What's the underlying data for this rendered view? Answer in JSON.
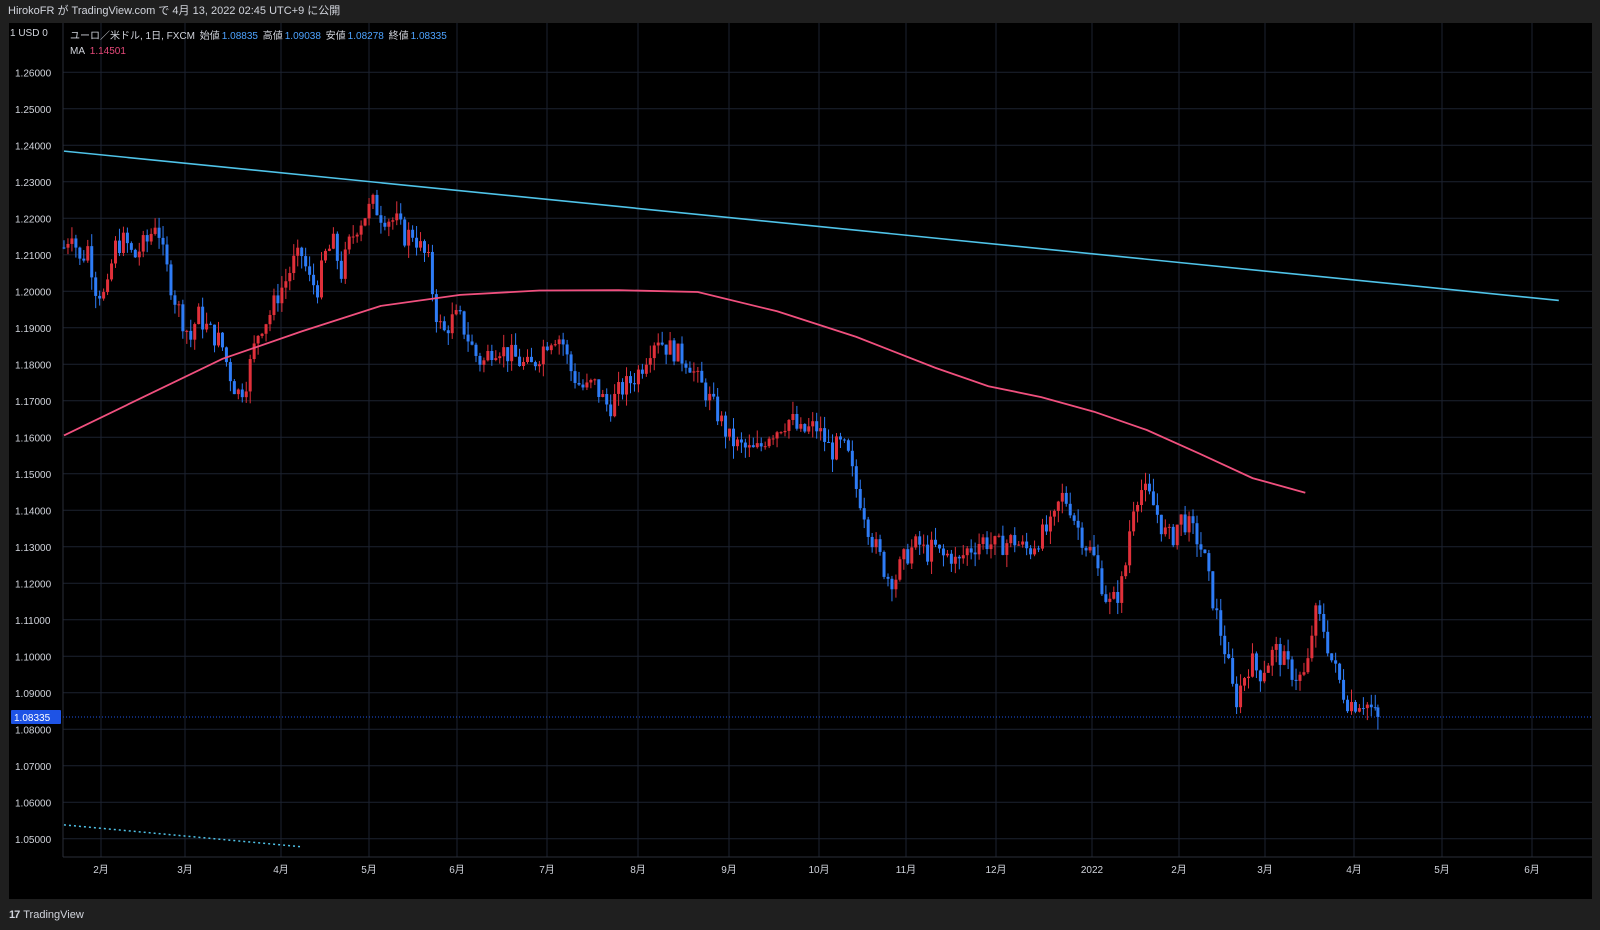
{
  "header": {
    "publish_text": "HirokoFR が TradingView.com で 4月 13, 2022 02:45 UTC+9 に公開"
  },
  "axis_corner": "1 USD 0",
  "legend": {
    "symbol": "ユーロ／米ドル, 1日, FXCM",
    "open_label": "始値",
    "open_value": "1.08835",
    "high_label": "高値",
    "high_value": "1.09038",
    "low_label": "安値",
    "low_value": "1.08278",
    "close_label": "終値",
    "close_value": "1.08335",
    "ma_label": "MA",
    "ma_value": "1.14501"
  },
  "footer": {
    "brand": "TradingView",
    "brand_mark": "17"
  },
  "colors": {
    "background": "#000000",
    "grid": "#1c2230",
    "up": "#e0303a",
    "down": "#2e7cf6",
    "ma": "#f0507e",
    "trendline": "#4fc3e8",
    "price_tag": "#1e53e5"
  },
  "chart_data": {
    "type": "candlestick",
    "y_range": [
      1.045,
      1.2735
    ],
    "y_ticks": [
      "1.26000",
      "1.25000",
      "1.24000",
      "1.23000",
      "1.22000",
      "1.21000",
      "1.20000",
      "1.19000",
      "1.18000",
      "1.17000",
      "1.16000",
      "1.15000",
      "1.14000",
      "1.13000",
      "1.12000",
      "1.11000",
      "1.10000",
      "1.09000",
      "1.08000",
      "1.07000",
      "1.06000",
      "1.05000"
    ],
    "x_ticks": [
      "2月",
      "3月",
      "4月",
      "5月",
      "6月",
      "7月",
      "8月",
      "9月",
      "10月",
      "11月",
      "12月",
      "2022",
      "2月",
      "3月",
      "4月",
      "5月",
      "6月"
    ],
    "last_price": "1.08335",
    "grid": true,
    "candle_path": [
      [
        0,
        1.212
      ],
      [
        6,
        1.217
      ],
      [
        12,
        1.208
      ],
      [
        18,
        1.212
      ],
      [
        24,
        1.201
      ],
      [
        32,
        1.198
      ],
      [
        38,
        1.212
      ],
      [
        46,
        1.214
      ],
      [
        53,
        1.209
      ],
      [
        58,
        1.212
      ],
      [
        64,
        1.214
      ],
      [
        70,
        1.22
      ],
      [
        75,
        1.21
      ],
      [
        83,
        1.199
      ],
      [
        90,
        1.192
      ],
      [
        96,
        1.187
      ],
      [
        101,
        1.194
      ],
      [
        106,
        1.191
      ],
      [
        113,
        1.188
      ],
      [
        119,
        1.186
      ],
      [
        125,
        1.178
      ],
      [
        131,
        1.172
      ],
      [
        137,
        1.174
      ],
      [
        143,
        1.183
      ],
      [
        148,
        1.19
      ],
      [
        155,
        1.193
      ],
      [
        162,
        1.199
      ],
      [
        168,
        1.203
      ],
      [
        174,
        1.208
      ],
      [
        180,
        1.21
      ],
      [
        186,
        1.203
      ],
      [
        192,
        1.201
      ],
      [
        198,
        1.21
      ],
      [
        204,
        1.213
      ],
      [
        210,
        1.205
      ],
      [
        216,
        1.213
      ],
      [
        222,
        1.218
      ],
      [
        228,
        1.221
      ],
      [
        234,
        1.224
      ],
      [
        240,
        1.221
      ],
      [
        246,
        1.22
      ],
      [
        252,
        1.219
      ],
      [
        258,
        1.215
      ],
      [
        264,
        1.216
      ],
      [
        270,
        1.212
      ],
      [
        276,
        1.208
      ],
      [
        281,
        1.195
      ],
      [
        287,
        1.188
      ],
      [
        293,
        1.192
      ],
      [
        299,
        1.193
      ],
      [
        305,
        1.188
      ],
      [
        311,
        1.183
      ],
      [
        317,
        1.18
      ],
      [
        323,
        1.184
      ],
      [
        329,
        1.185
      ],
      [
        335,
        1.183
      ],
      [
        341,
        1.182
      ],
      [
        347,
        1.18
      ],
      [
        353,
        1.179
      ],
      [
        359,
        1.182
      ],
      [
        365,
        1.186
      ],
      [
        371,
        1.188
      ],
      [
        377,
        1.187
      ],
      [
        383,
        1.179
      ],
      [
        389,
        1.175
      ],
      [
        395,
        1.173
      ],
      [
        401,
        1.175
      ],
      [
        407,
        1.171
      ],
      [
        413,
        1.168
      ],
      [
        419,
        1.172
      ],
      [
        425,
        1.174
      ],
      [
        431,
        1.176
      ],
      [
        437,
        1.179
      ],
      [
        443,
        1.184
      ],
      [
        449,
        1.188
      ],
      [
        455,
        1.185
      ],
      [
        461,
        1.184
      ],
      [
        467,
        1.182
      ],
      [
        473,
        1.181
      ],
      [
        479,
        1.176
      ],
      [
        485,
        1.173
      ],
      [
        491,
        1.169
      ],
      [
        497,
        1.165
      ],
      [
        503,
        1.16
      ],
      [
        509,
        1.158
      ],
      [
        515,
        1.157
      ],
      [
        521,
        1.156
      ],
      [
        527,
        1.157
      ],
      [
        533,
        1.161
      ],
      [
        539,
        1.162
      ],
      [
        545,
        1.164
      ],
      [
        551,
        1.165
      ],
      [
        557,
        1.161
      ],
      [
        563,
        1.162
      ],
      [
        569,
        1.163
      ],
      [
        575,
        1.16
      ],
      [
        581,
        1.156
      ],
      [
        587,
        1.158
      ],
      [
        593,
        1.156
      ],
      [
        599,
        1.147
      ],
      [
        605,
        1.141
      ],
      [
        611,
        1.133
      ],
      [
        617,
        1.128
      ],
      [
        623,
        1.122
      ],
      [
        629,
        1.121
      ],
      [
        635,
        1.126
      ],
      [
        641,
        1.129
      ],
      [
        647,
        1.131
      ],
      [
        653,
        1.128
      ],
      [
        659,
        1.13
      ],
      [
        665,
        1.127
      ],
      [
        671,
        1.128
      ],
      [
        677,
        1.125
      ],
      [
        683,
        1.129
      ],
      [
        689,
        1.13
      ],
      [
        695,
        1.132
      ],
      [
        701,
        1.131
      ],
      [
        707,
        1.13
      ],
      [
        713,
        1.131
      ],
      [
        719,
        1.132
      ],
      [
        725,
        1.13
      ],
      [
        731,
        1.129
      ],
      [
        737,
        1.132
      ],
      [
        743,
        1.134
      ],
      [
        749,
        1.136
      ],
      [
        755,
        1.144
      ],
      [
        761,
        1.142
      ],
      [
        767,
        1.136
      ],
      [
        773,
        1.131
      ],
      [
        779,
        1.128
      ],
      [
        785,
        1.121
      ],
      [
        791,
        1.114
      ],
      [
        797,
        1.116
      ],
      [
        803,
        1.122
      ],
      [
        809,
        1.141
      ],
      [
        815,
        1.146
      ],
      [
        821,
        1.144
      ],
      [
        827,
        1.14
      ],
      [
        833,
        1.134
      ],
      [
        839,
        1.132
      ],
      [
        845,
        1.138
      ],
      [
        851,
        1.136
      ],
      [
        857,
        1.133
      ],
      [
        863,
        1.128
      ],
      [
        869,
        1.117
      ],
      [
        875,
        1.108
      ],
      [
        881,
        1.099
      ],
      [
        887,
        1.087
      ],
      [
        893,
        1.094
      ],
      [
        899,
        1.099
      ],
      [
        905,
        1.095
      ],
      [
        911,
        1.098
      ],
      [
        917,
        1.102
      ],
      [
        923,
        1.099
      ],
      [
        929,
        1.096
      ],
      [
        935,
        1.094
      ],
      [
        941,
        1.095
      ],
      [
        947,
        1.112
      ],
      [
        953,
        1.109
      ],
      [
        959,
        1.1
      ],
      [
        965,
        1.094
      ],
      [
        971,
        1.088
      ],
      [
        977,
        1.087
      ],
      [
        983,
        1.088
      ],
      [
        989,
        1.086
      ],
      [
        995,
        1.083
      ]
    ],
    "ma_path": [
      [
        0,
        1.1605
      ],
      [
        60,
        1.171
      ],
      [
        120,
        1.1815
      ],
      [
        180,
        1.189
      ],
      [
        240,
        1.196
      ],
      [
        300,
        1.199
      ],
      [
        360,
        1.2002
      ],
      [
        420,
        1.2003
      ],
      [
        480,
        1.1998
      ],
      [
        540,
        1.1945
      ],
      [
        600,
        1.1875
      ],
      [
        660,
        1.179
      ],
      [
        700,
        1.174
      ],
      [
        740,
        1.171
      ],
      [
        780,
        1.167
      ],
      [
        820,
        1.162
      ],
      [
        860,
        1.1555
      ],
      [
        900,
        1.1488
      ],
      [
        940,
        1.1448
      ]
    ],
    "trendline": {
      "from": [
        0,
        1.2384
      ],
      "to": [
        1132,
        1.1975
      ]
    },
    "dotted_line": {
      "from": [
        0,
        1.0538
      ],
      "to": [
        180,
        1.0478
      ]
    }
  }
}
